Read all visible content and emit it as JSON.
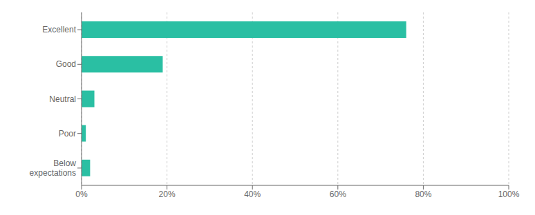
{
  "chart_data": {
    "type": "bar",
    "orientation": "horizontal",
    "categories": [
      "Excellent",
      "Good",
      "Neutral",
      "Poor",
      "Below\nexpectations"
    ],
    "values": [
      76,
      19,
      3,
      1,
      2
    ],
    "color": "#2abfa3",
    "xlim": [
      0,
      100
    ],
    "xticks": [
      {
        "value": 0,
        "label": "0%"
      },
      {
        "value": 20,
        "label": "20%"
      },
      {
        "value": 40,
        "label": "40%"
      },
      {
        "value": 60,
        "label": "60%"
      },
      {
        "value": 80,
        "label": "80%"
      },
      {
        "value": 100,
        "label": "100%"
      }
    ],
    "grid": true
  }
}
